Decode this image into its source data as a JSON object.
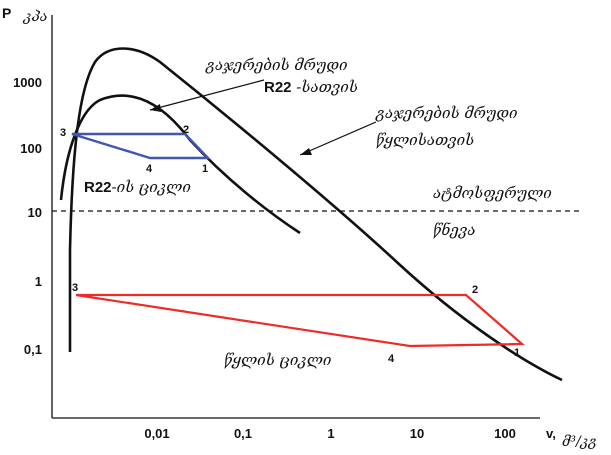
{
  "axes": {
    "y_label_p": "P",
    "y_label_unit": "კპა",
    "x_label_v": "v,",
    "x_label_unit": "მ³/კგ",
    "y_ticks": [
      "1000",
      "100",
      "10",
      "1",
      "0,1"
    ],
    "x_ticks": [
      "0,01",
      "0,1",
      "1",
      "10",
      "100"
    ]
  },
  "labels": {
    "r22_curve_line1": "გაჯერების მრუდი",
    "r22_curve_line2_bold": "R22",
    "r22_curve_line2_rest": " -სათვის",
    "water_curve_line1": "გაჯერების მრუდი",
    "water_curve_line2": "წყლისათვის",
    "r22_cycle_bold": "R22",
    "r22_cycle_rest": "-ის ციკლი",
    "atmos_line1": "ატმოსფერული",
    "atmos_line2": "წნევა",
    "water_cycle": "წყლის ციკლი"
  },
  "r22_cycle": {
    "color": "#4156b3",
    "points": [
      "1",
      "2",
      "3",
      "4"
    ]
  },
  "water_cycle": {
    "color": "#ee2b26",
    "points": [
      "1",
      "2",
      "3",
      "4"
    ]
  },
  "curve_color": "#111111",
  "atmospheric_line": {
    "style": "dashed"
  }
}
